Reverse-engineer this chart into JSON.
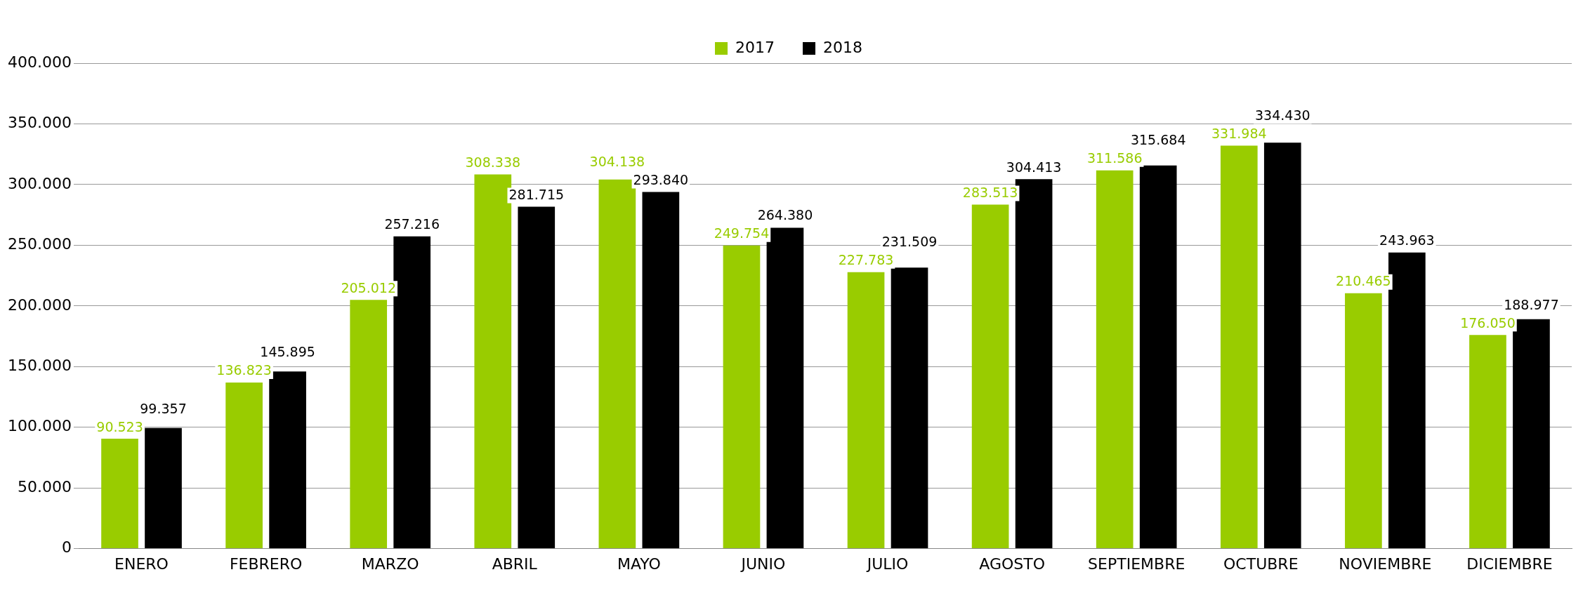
{
  "chart_data": {
    "type": "bar",
    "categories": [
      "ENERO",
      "FEBRERO",
      "MARZO",
      "ABRIL",
      "MAYO",
      "JUNIO",
      "JULIO",
      "AGOSTO",
      "SEPTIEMBRE",
      "OCTUBRE",
      "NOVIEMBRE",
      "DICIEMBRE"
    ],
    "series": [
      {
        "name": "2017",
        "color": "#99cc00",
        "values": [
          90523,
          136823,
          205012,
          308338,
          304138,
          249754,
          227783,
          283513,
          311586,
          331984,
          210465,
          176050
        ],
        "value_labels": [
          "90.523",
          "136.823",
          "205.012",
          "308.338",
          "304.138",
          "249.754",
          "227.783",
          "283.513",
          "311.586",
          "331.984",
          "210.465",
          "176.050"
        ]
      },
      {
        "name": "2018",
        "color": "#000000",
        "values": [
          99357,
          145895,
          257216,
          281715,
          293840,
          264380,
          231509,
          304413,
          315684,
          334430,
          243963,
          188977
        ],
        "value_labels": [
          "99.357",
          "145.895",
          "257.216",
          "281.715",
          "293.840",
          "264.380",
          "231.509",
          "304.413",
          "315.684",
          "334.430",
          "243.963",
          "188.977"
        ]
      }
    ],
    "ylim": [
      0,
      400000
    ],
    "yticks": [
      {
        "value": 0,
        "label": "0"
      },
      {
        "value": 50000,
        "label": "50.000"
      },
      {
        "value": 100000,
        "label": "100.000"
      },
      {
        "value": 150000,
        "label": "150.000"
      },
      {
        "value": 200000,
        "label": "200.000"
      },
      {
        "value": 250000,
        "label": "250.000"
      },
      {
        "value": 300000,
        "label": "300.000"
      },
      {
        "value": 350000,
        "label": "350.000"
      },
      {
        "value": 400000,
        "label": "400.000"
      }
    ],
    "grid": "y",
    "legend": "top"
  }
}
